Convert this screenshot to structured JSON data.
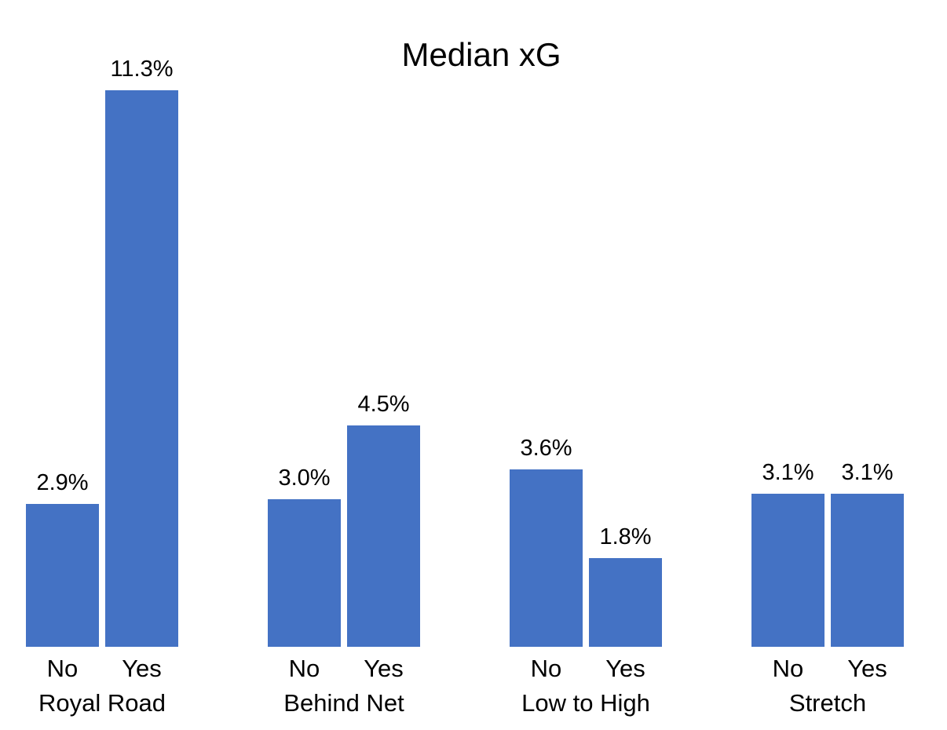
{
  "title": "Median xG",
  "colors": {
    "bar": "#4472C4",
    "text": "#000000",
    "background": "#FFFFFF"
  },
  "chart_data": {
    "type": "bar",
    "title": "Median xG",
    "unit": "%",
    "ylim": [
      0,
      11.3
    ],
    "grid": false,
    "legend": null,
    "axes_visible": false,
    "value_labels_position": "above-bars",
    "categories_per_group": [
      "No",
      "Yes"
    ],
    "groups": [
      {
        "label": "Royal Road",
        "categories": [
          "No",
          "Yes"
        ],
        "values": [
          2.9,
          11.3
        ],
        "value_labels": [
          "2.9%",
          "11.3%"
        ]
      },
      {
        "label": "Behind Net",
        "categories": [
          "No",
          "Yes"
        ],
        "values": [
          3.0,
          4.5
        ],
        "value_labels": [
          "3.0%",
          "4.5%"
        ]
      },
      {
        "label": "Low to High",
        "categories": [
          "No",
          "Yes"
        ],
        "values": [
          3.6,
          1.8
        ],
        "value_labels": [
          "3.6%",
          "1.8%"
        ]
      },
      {
        "label": "Stretch",
        "categories": [
          "No",
          "Yes"
        ],
        "values": [
          3.1,
          3.1
        ],
        "value_labels": [
          "3.1%",
          "3.1%"
        ]
      }
    ]
  }
}
